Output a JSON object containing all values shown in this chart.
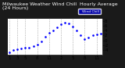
{
  "title": "Milwaukee Weather Wind Chill  Hourly Average  (24 Hours)",
  "hours": [
    1,
    2,
    3,
    4,
    5,
    6,
    7,
    8,
    9,
    10,
    11,
    12,
    13,
    14,
    15,
    16,
    17,
    18,
    19,
    20,
    21,
    22,
    23,
    24
  ],
  "wind_chill": [
    -5.0,
    -4.2,
    -3.8,
    -3.5,
    -3.2,
    -3.0,
    -2.5,
    -1.8,
    -0.5,
    1.5,
    3.0,
    4.2,
    5.5,
    6.8,
    7.5,
    7.0,
    5.8,
    4.0,
    2.0,
    0.5,
    1.2,
    2.0,
    2.5,
    2.8
  ],
  "line_color": "#0000ff",
  "plot_bg": "#ffffff",
  "fig_bg": "#1a1a1a",
  "grid_color": "#888888",
  "title_color": "#ffffff",
  "legend_color": "#0000cc",
  "ylim": [
    -6,
    9
  ],
  "ytick_values": [
    -4,
    -2,
    0,
    2,
    4,
    6,
    8
  ],
  "ytick_labels": [
    "-4",
    "-2",
    "0",
    "2",
    "4",
    "6",
    "8"
  ],
  "xtick_pos": [
    1,
    3,
    5,
    8,
    11,
    14,
    17,
    20,
    23
  ],
  "xtick_labels": [
    "1",
    "3",
    "5",
    "8",
    "11",
    "2",
    "5",
    "8",
    "11"
  ],
  "grid_positions": [
    1,
    3,
    5,
    8,
    11,
    14,
    17,
    20,
    23
  ],
  "title_fontsize": 4.5,
  "tick_fontsize": 4.0,
  "dot_size": 1.8,
  "legend_label": "Wind Chill"
}
